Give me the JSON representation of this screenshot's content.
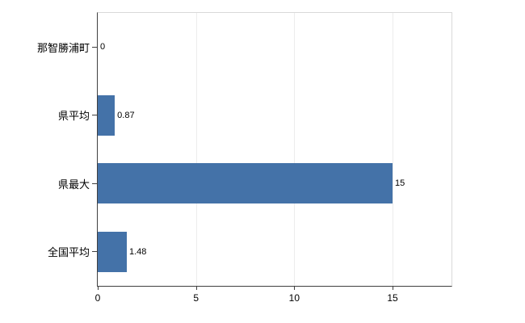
{
  "chart_data": {
    "type": "bar",
    "orientation": "horizontal",
    "title": "",
    "xlabel": "",
    "ylabel": "",
    "categories": [
      "那智勝浦町",
      "県平均",
      "県最大",
      "全国平均"
    ],
    "values": [
      0,
      0.87,
      15,
      1.48
    ],
    "value_labels": [
      "0",
      "0.87",
      "15",
      "1.48"
    ],
    "xlim": [
      0,
      18
    ],
    "xticks": [
      0,
      5,
      10,
      15
    ],
    "grid": true,
    "legend_position": "none",
    "bar_color": "#4472a8",
    "axis_color": "#404040",
    "frame_color": "#d9d9d9",
    "gridline_color": "#ececec",
    "background_color": "#ffffff"
  }
}
